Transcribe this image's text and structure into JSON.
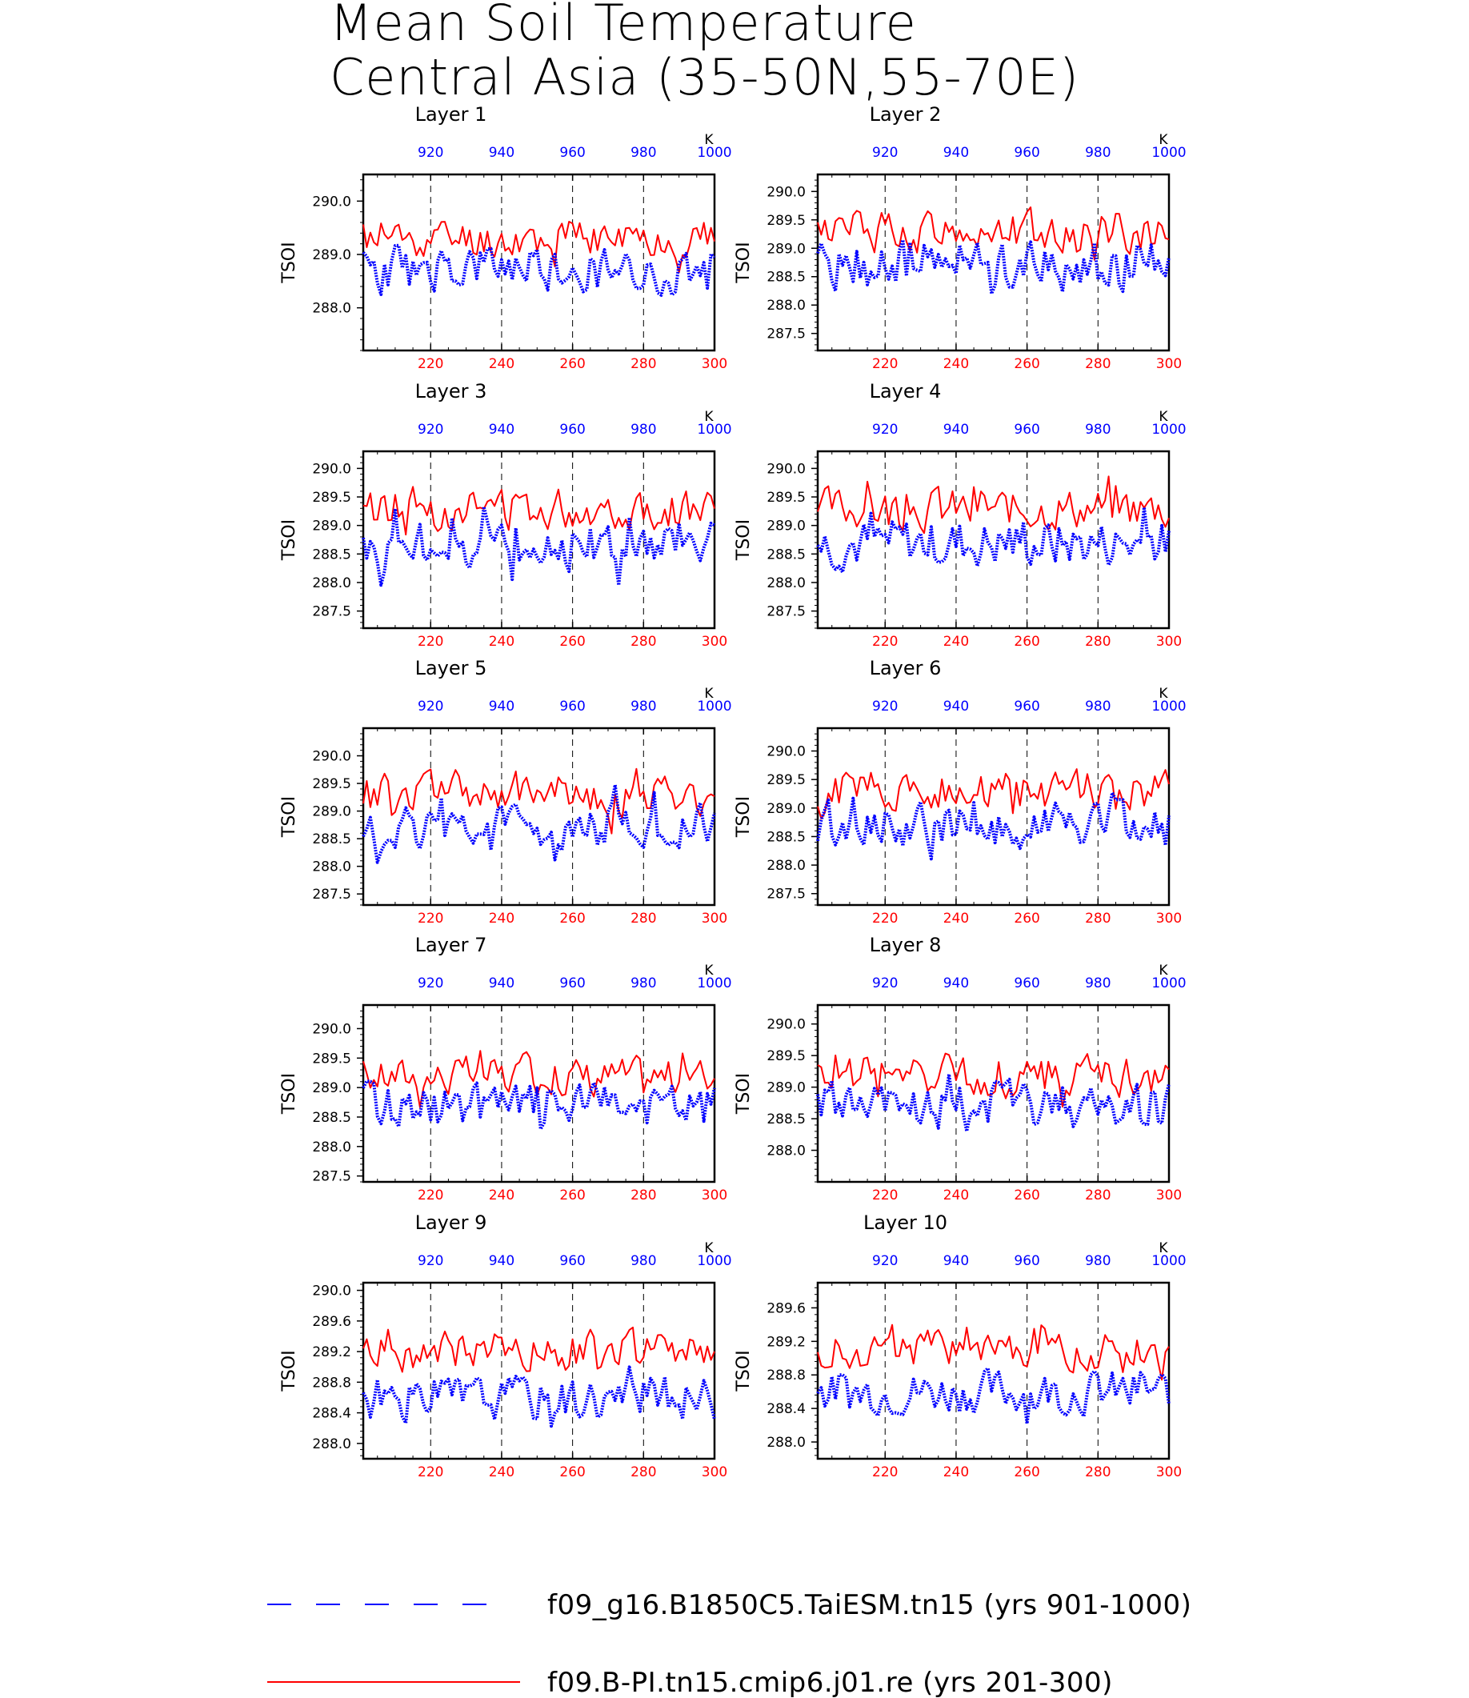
{
  "figure": {
    "title_line1": "Mean Soil Temperature",
    "title_line2": "Central Asia (35-50N,55-70E)",
    "colors": {
      "red_series": "#ff0000",
      "blue_series": "#0000ff"
    },
    "legend": [
      {
        "label": "f09_g16.B1850C5.TaiESM.tn15 (yrs 901-1000)",
        "color": "#0000ff",
        "style": "dashed"
      },
      {
        "label": "f09.B-PI.tn15.cmip6.j01.re (yrs 201-300)",
        "color": "#ff0000",
        "style": "solid"
      }
    ]
  },
  "chart_data": [
    {
      "type": "line",
      "title": "Layer 1",
      "ylabel": "TSOI",
      "bottom_xlabel": "",
      "top_xlabel": "K",
      "x_bottom_ticks": [
        "220",
        "240",
        "260",
        "280",
        "300"
      ],
      "x_top_ticks": [
        "920",
        "940",
        "960",
        "980",
        "1000"
      ],
      "xlim_bottom": [
        201,
        300
      ],
      "xlim_top": [
        901,
        1000
      ],
      "ylim": [
        287.2,
        290.5
      ],
      "y_ticks": [
        "288.0",
        "289.0",
        "290.0"
      ],
      "series": [
        {
          "x_axis": "bottom",
          "mean": 289.3,
          "amp": 0.5,
          "seed": 11
        },
        {
          "x_axis": "top",
          "mean": 288.7,
          "amp": 0.6,
          "seed": 23
        }
      ]
    },
    {
      "type": "line",
      "title": "Layer 2",
      "ylabel": "TSOI",
      "bottom_xlabel": "",
      "top_xlabel": "K",
      "x_bottom_ticks": [
        "220",
        "240",
        "260",
        "280",
        "300"
      ],
      "x_top_ticks": [
        "920",
        "940",
        "960",
        "980",
        "1000"
      ],
      "xlim_bottom": [
        201,
        300
      ],
      "xlim_top": [
        901,
        1000
      ],
      "ylim": [
        287.2,
        290.3
      ],
      "y_ticks": [
        "287.5",
        "288.0",
        "288.5",
        "289.0",
        "289.5",
        "290.0"
      ],
      "series": [
        {
          "x_axis": "bottom",
          "mean": 289.3,
          "amp": 0.5,
          "seed": 12
        },
        {
          "x_axis": "top",
          "mean": 288.7,
          "amp": 0.6,
          "seed": 24
        }
      ]
    },
    {
      "type": "line",
      "title": "Layer 3",
      "ylabel": "TSOI",
      "bottom_xlabel": "",
      "top_xlabel": "K",
      "x_bottom_ticks": [
        "220",
        "240",
        "260",
        "280",
        "300"
      ],
      "x_top_ticks": [
        "920",
        "940",
        "960",
        "980",
        "1000"
      ],
      "xlim_bottom": [
        201,
        300
      ],
      "xlim_top": [
        901,
        1000
      ],
      "ylim": [
        287.2,
        290.3
      ],
      "y_ticks": [
        "287.5",
        "288.0",
        "288.5",
        "289.0",
        "289.5",
        "290.0"
      ],
      "series": [
        {
          "x_axis": "bottom",
          "mean": 289.3,
          "amp": 0.5,
          "seed": 13
        },
        {
          "x_axis": "top",
          "mean": 288.7,
          "amp": 0.6,
          "seed": 25
        }
      ]
    },
    {
      "type": "line",
      "title": "Layer 4",
      "ylabel": "TSOI",
      "bottom_xlabel": "",
      "top_xlabel": "K",
      "x_bottom_ticks": [
        "220",
        "240",
        "260",
        "280",
        "300"
      ],
      "x_top_ticks": [
        "920",
        "940",
        "960",
        "980",
        "1000"
      ],
      "xlim_bottom": [
        201,
        300
      ],
      "xlim_top": [
        901,
        1000
      ],
      "ylim": [
        287.2,
        290.3
      ],
      "y_ticks": [
        "287.5",
        "288.0",
        "288.5",
        "289.0",
        "289.5",
        "290.0"
      ],
      "series": [
        {
          "x_axis": "bottom",
          "mean": 289.3,
          "amp": 0.5,
          "seed": 14
        },
        {
          "x_axis": "top",
          "mean": 288.7,
          "amp": 0.6,
          "seed": 26
        }
      ]
    },
    {
      "type": "line",
      "title": "Layer 5",
      "ylabel": "TSOI",
      "bottom_xlabel": "",
      "top_xlabel": "K",
      "x_bottom_ticks": [
        "220",
        "240",
        "260",
        "280",
        "300"
      ],
      "x_top_ticks": [
        "920",
        "940",
        "960",
        "980",
        "1000"
      ],
      "xlim_bottom": [
        201,
        300
      ],
      "xlim_top": [
        901,
        1000
      ],
      "ylim": [
        287.3,
        290.5
      ],
      "y_ticks": [
        "287.5",
        "288.0",
        "288.5",
        "289.0",
        "289.5",
        "290.0"
      ],
      "series": [
        {
          "x_axis": "bottom",
          "mean": 289.3,
          "amp": 0.5,
          "seed": 15
        },
        {
          "x_axis": "top",
          "mean": 288.7,
          "amp": 0.55,
          "seed": 27
        }
      ]
    },
    {
      "type": "line",
      "title": "Layer 6",
      "ylabel": "TSOI",
      "bottom_xlabel": "",
      "top_xlabel": "K",
      "x_bottom_ticks": [
        "220",
        "240",
        "260",
        "280",
        "300"
      ],
      "x_top_ticks": [
        "920",
        "940",
        "960",
        "980",
        "1000"
      ],
      "xlim_bottom": [
        201,
        300
      ],
      "xlim_top": [
        901,
        1000
      ],
      "ylim": [
        287.3,
        290.4
      ],
      "y_ticks": [
        "287.5",
        "288.0",
        "288.5",
        "289.0",
        "289.5",
        "290.0"
      ],
      "series": [
        {
          "x_axis": "bottom",
          "mean": 289.3,
          "amp": 0.5,
          "seed": 16
        },
        {
          "x_axis": "top",
          "mean": 288.7,
          "amp": 0.55,
          "seed": 28
        }
      ]
    },
    {
      "type": "line",
      "title": "Layer 7",
      "ylabel": "TSOI",
      "bottom_xlabel": "",
      "top_xlabel": "K",
      "x_bottom_ticks": [
        "220",
        "240",
        "260",
        "280",
        "300"
      ],
      "x_top_ticks": [
        "920",
        "940",
        "960",
        "980",
        "1000"
      ],
      "xlim_bottom": [
        201,
        300
      ],
      "xlim_top": [
        901,
        1000
      ],
      "ylim": [
        287.4,
        290.4
      ],
      "y_ticks": [
        "287.5",
        "288.0",
        "288.5",
        "289.0",
        "289.5",
        "290.0"
      ],
      "series": [
        {
          "x_axis": "bottom",
          "mean": 289.2,
          "amp": 0.45,
          "seed": 17
        },
        {
          "x_axis": "top",
          "mean": 288.7,
          "amp": 0.5,
          "seed": 29
        }
      ]
    },
    {
      "type": "line",
      "title": "Layer 8",
      "ylabel": "TSOI",
      "bottom_xlabel": "",
      "top_xlabel": "K",
      "x_bottom_ticks": [
        "220",
        "240",
        "260",
        "280",
        "300"
      ],
      "x_top_ticks": [
        "920",
        "940",
        "960",
        "980",
        "1000"
      ],
      "xlim_bottom": [
        201,
        300
      ],
      "xlim_top": [
        901,
        1000
      ],
      "ylim": [
        287.5,
        290.3
      ],
      "y_ticks": [
        "288.0",
        "288.5",
        "289.0",
        "289.5",
        "290.0"
      ],
      "series": [
        {
          "x_axis": "bottom",
          "mean": 289.2,
          "amp": 0.45,
          "seed": 18
        },
        {
          "x_axis": "top",
          "mean": 288.7,
          "amp": 0.5,
          "seed": 30
        }
      ]
    },
    {
      "type": "line",
      "title": "Layer 9",
      "ylabel": "TSOI",
      "bottom_xlabel": "",
      "top_xlabel": "K",
      "x_bottom_ticks": [
        "220",
        "240",
        "260",
        "280",
        "300"
      ],
      "x_top_ticks": [
        "920",
        "940",
        "960",
        "980",
        "1000"
      ],
      "xlim_bottom": [
        201,
        300
      ],
      "xlim_top": [
        901,
        1000
      ],
      "ylim": [
        287.8,
        290.1
      ],
      "y_ticks": [
        "288.0",
        "288.4",
        "288.8",
        "289.2",
        "289.6",
        "290.0"
      ],
      "series": [
        {
          "x_axis": "bottom",
          "mean": 289.2,
          "amp": 0.35,
          "seed": 19
        },
        {
          "x_axis": "top",
          "mean": 288.6,
          "amp": 0.4,
          "seed": 31
        }
      ]
    },
    {
      "type": "line",
      "title": "Layer 10",
      "ylabel": "TSOI",
      "bottom_xlabel": "",
      "top_xlabel": "K",
      "x_bottom_ticks": [
        "220",
        "240",
        "260",
        "280",
        "300"
      ],
      "x_top_ticks": [
        "920",
        "940",
        "960",
        "980",
        "1000"
      ],
      "xlim_bottom": [
        201,
        300
      ],
      "xlim_top": [
        901,
        1000
      ],
      "ylim": [
        287.8,
        289.9
      ],
      "y_ticks": [
        "288.0",
        "288.4",
        "288.8",
        "289.2",
        "289.6"
      ],
      "series": [
        {
          "x_axis": "bottom",
          "mean": 289.1,
          "amp": 0.3,
          "seed": 20
        },
        {
          "x_axis": "top",
          "mean": 288.6,
          "amp": 0.35,
          "seed": 32
        }
      ]
    }
  ]
}
